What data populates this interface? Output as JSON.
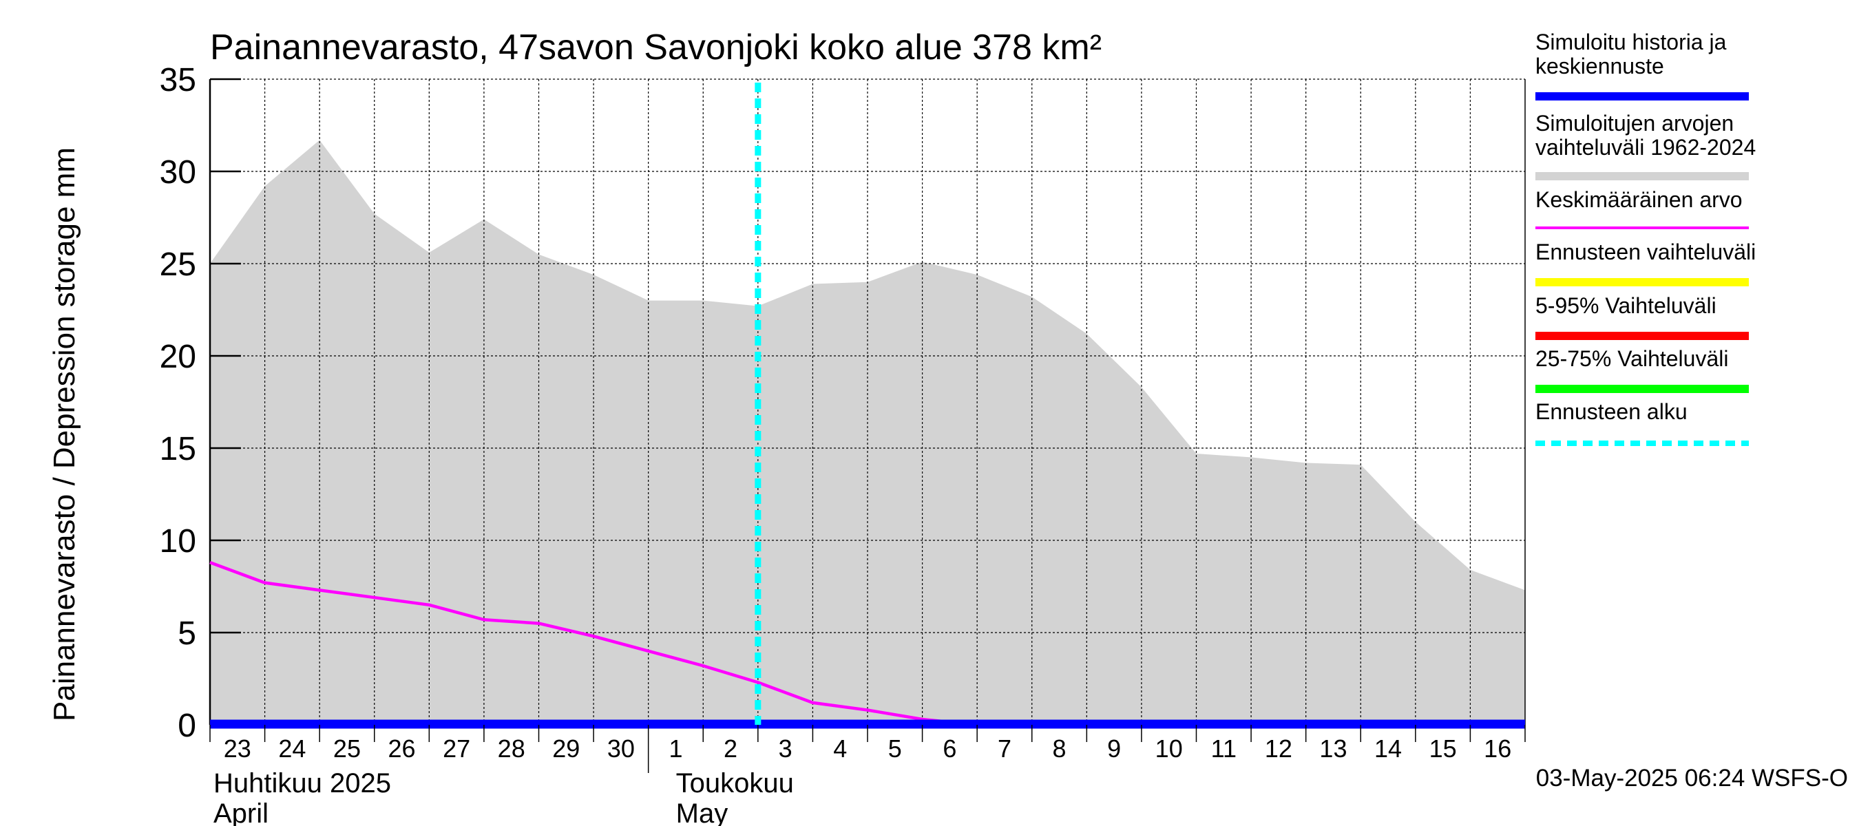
{
  "chart_data": {
    "type": "area",
    "title": "Painannevarasto, 47savon Savonjoki koko alue 378 km²",
    "ylabel": "Painannevarasto / Depression storage    mm",
    "ylim": [
      0,
      35
    ],
    "yticks": [
      0,
      5,
      10,
      15,
      20,
      25,
      30,
      35
    ],
    "x_day_labels": [
      "23",
      "24",
      "25",
      "26",
      "27",
      "28",
      "29",
      "30",
      "1",
      "2",
      "3",
      "4",
      "5",
      "6",
      "7",
      "8",
      "9",
      "10",
      "11",
      "12",
      "13",
      "14",
      "15",
      "16"
    ],
    "month_labels": [
      {
        "fi": "Huhtikuu  2025",
        "en": "April"
      },
      {
        "fi": "Toukokuu",
        "en": "May"
      }
    ],
    "forecast_start_day": 10.0,
    "grid": true,
    "series": [
      {
        "name": "Simuloitujen arvojen vaihteluväli 1962-2024",
        "kind": "range",
        "color": "#d3d3d3",
        "x": [
          0,
          1,
          2,
          3,
          4,
          5,
          6,
          7,
          8,
          9,
          10,
          11,
          12,
          13,
          14,
          15,
          16,
          17,
          18,
          19,
          20,
          21,
          22,
          23,
          24
        ],
        "upper": [
          25.0,
          29.2,
          31.7,
          27.7,
          25.6,
          27.4,
          25.5,
          24.4,
          23.0,
          23.0,
          22.7,
          23.9,
          24.0,
          25.1,
          24.4,
          23.2,
          21.2,
          18.3,
          14.7,
          14.5,
          14.2,
          14.1,
          11.0,
          8.4,
          7.3
        ],
        "lower": [
          0,
          0,
          0,
          0,
          0,
          0,
          0,
          0,
          0,
          0,
          0,
          0,
          0,
          0,
          0,
          0,
          0,
          0,
          0,
          0,
          0,
          0,
          0,
          0,
          0
        ]
      },
      {
        "name": "Keskimääräinen arvo",
        "kind": "line",
        "color": "#ff00ff",
        "x": [
          0,
          1,
          2,
          3,
          4,
          5,
          6,
          7,
          8,
          9,
          10,
          11,
          12,
          13,
          14,
          15,
          16,
          17,
          18,
          19,
          20,
          21,
          22,
          23,
          24
        ],
        "values": [
          8.8,
          7.7,
          7.3,
          6.9,
          6.5,
          5.7,
          5.5,
          4.8,
          4.0,
          3.2,
          2.3,
          1.2,
          0.8,
          0.3,
          0,
          0,
          0,
          0,
          0,
          0,
          0,
          0,
          0,
          0,
          0
        ]
      },
      {
        "name": "Simuloitu historia ja keskiennuste",
        "kind": "line",
        "color": "#0000ff",
        "x": [
          0,
          1,
          2,
          3,
          4,
          5,
          6,
          7,
          8,
          9,
          10,
          11,
          12,
          13,
          14,
          15,
          16,
          17,
          18,
          19,
          20,
          21,
          22,
          23,
          24
        ],
        "values": [
          0,
          0,
          0,
          0,
          0,
          0,
          0,
          0,
          0,
          0,
          0,
          0,
          0,
          0,
          0,
          0,
          0,
          0,
          0,
          0,
          0,
          0,
          0,
          0,
          0
        ]
      }
    ],
    "legend": {
      "placement": "right",
      "items": [
        {
          "label": "Simuloitu historia ja keskiennuste",
          "color": "#0000ff",
          "style": "thick"
        },
        {
          "label": "Simuloitujen arvojen vaihteluväli 1962-2024",
          "color": "#d3d3d3",
          "style": "thick"
        },
        {
          "label": "Keskimääräinen arvo",
          "color": "#ff00ff",
          "style": "thin"
        },
        {
          "label": "Ennusteen vaihteluväli",
          "color": "#ffff00",
          "style": "thick"
        },
        {
          "label": "5-95% Vaihteluväli",
          "color": "#ff0000",
          "style": "thick"
        },
        {
          "label": "25-75% Vaihteluväli",
          "color": "#00ff00",
          "style": "thick"
        },
        {
          "label": "Ennusteen alku",
          "color": "#00ffff",
          "style": "dashed"
        }
      ]
    },
    "footer": "03-May-2025 06:24 WSFS-O"
  }
}
